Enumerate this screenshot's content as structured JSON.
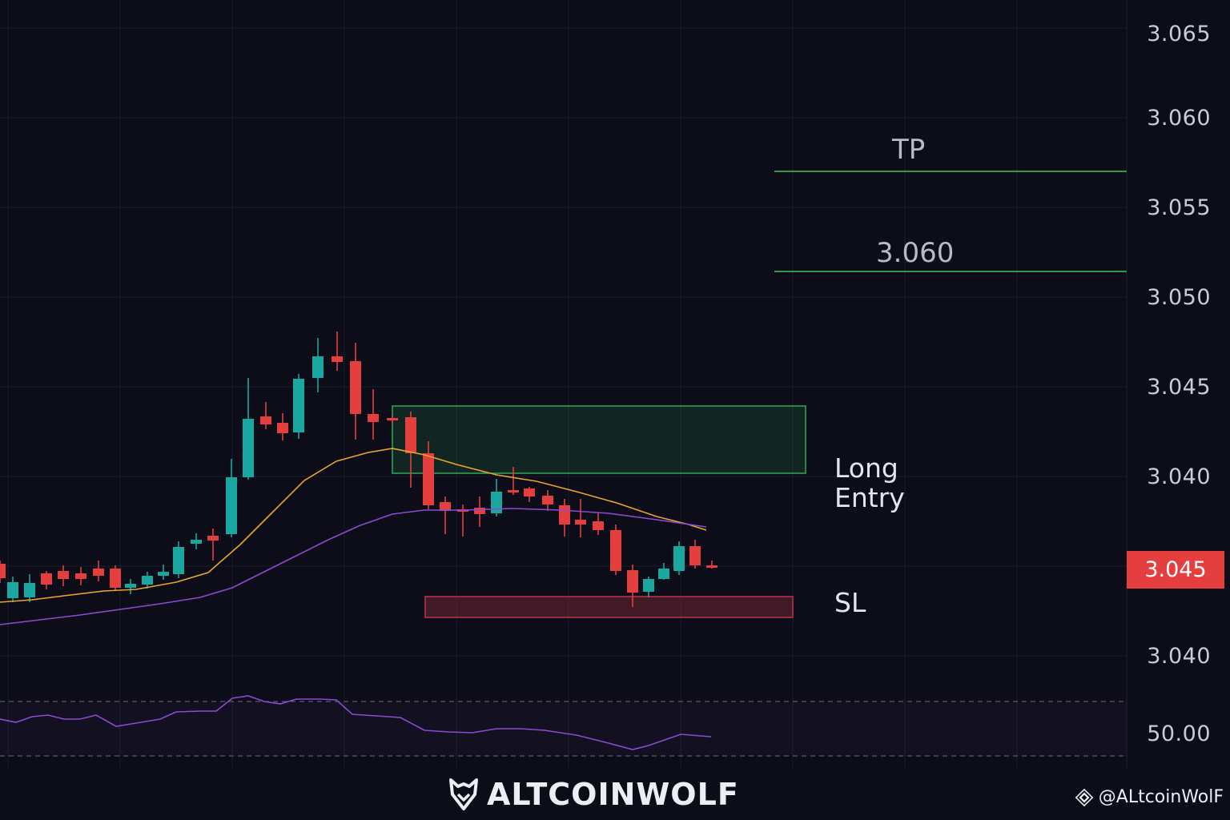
{
  "chart_data": {
    "type": "candlestick",
    "price_axis_ticks": [
      "3.065",
      "3.060",
      "3.055",
      "3.050",
      "3.045",
      "3.040",
      "3.040"
    ],
    "rsi_axis_tick": "50.00",
    "current_price": "3.045",
    "annotations": {
      "take_profit_label": "TP",
      "target_price_label": "3.060",
      "entry_label_line1": "Long",
      "entry_label_line2": "Entry",
      "stop_loss_label": "SL"
    },
    "colors": {
      "background": "#0c0d18",
      "bull": "#19a7a0",
      "bear": "#e53e3e",
      "ema_fast": "#e8a62e",
      "ema_slow": "#8a4bd1",
      "rsi": "#8a4bd1",
      "tp_line": "#2e9a4a",
      "entry_zone": "#2fa85a",
      "sl_zone": "#c0344a"
    },
    "grid": true
  },
  "branding": {
    "logo_text": "ALTCOINWOLF",
    "handle": "@ALtcoinWolF",
    "logo_icon": "wolf-icon",
    "handle_icon": "binance-icon"
  }
}
